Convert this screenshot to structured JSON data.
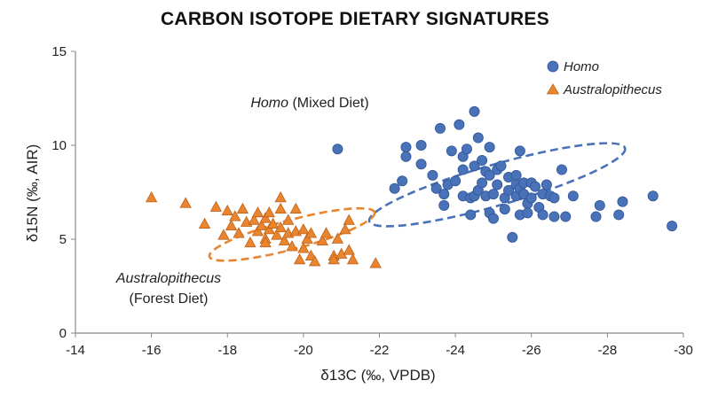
{
  "chart_data": {
    "type": "scatter",
    "title": "CARBON ISOTOPE DIETARY SIGNATURES",
    "xlabel": "δ13C (‰, VPDB)",
    "ylabel": "δ15N (‰, AIR)",
    "xlim": [
      -14,
      -30
    ],
    "ylim": [
      0,
      15
    ],
    "xticks": [
      -14,
      -16,
      -18,
      -20,
      -22,
      -24,
      -26,
      -28,
      -30
    ],
    "yticks": [
      0,
      5,
      10,
      15
    ],
    "grid": false,
    "legend": "top-right",
    "series": [
      {
        "name": "Homo",
        "marker": "circle",
        "color": "#4a72b8",
        "points": [
          [
            -20.9,
            9.8
          ],
          [
            -22.4,
            7.7
          ],
          [
            -22.6,
            8.1
          ],
          [
            -22.7,
            9.9
          ],
          [
            -22.7,
            9.4
          ],
          [
            -23.1,
            10.0
          ],
          [
            -23.1,
            9.0
          ],
          [
            -23.4,
            8.4
          ],
          [
            -23.5,
            7.7
          ],
          [
            -23.6,
            10.9
          ],
          [
            -23.7,
            7.4
          ],
          [
            -23.7,
            6.8
          ],
          [
            -23.8,
            7.9
          ],
          [
            -23.9,
            9.7
          ],
          [
            -24.0,
            8.1
          ],
          [
            -24.1,
            11.1
          ],
          [
            -24.2,
            8.7
          ],
          [
            -24.2,
            9.4
          ],
          [
            -24.2,
            7.3
          ],
          [
            -24.3,
            9.8
          ],
          [
            -24.4,
            7.2
          ],
          [
            -24.4,
            6.3
          ],
          [
            -24.5,
            11.8
          ],
          [
            -24.5,
            8.9
          ],
          [
            -24.5,
            7.3
          ],
          [
            -24.6,
            10.4
          ],
          [
            -24.6,
            7.6
          ],
          [
            -24.7,
            9.2
          ],
          [
            -24.7,
            8.0
          ],
          [
            -24.8,
            8.6
          ],
          [
            -24.8,
            7.3
          ],
          [
            -24.9,
            9.9
          ],
          [
            -24.9,
            8.4
          ],
          [
            -24.9,
            6.4
          ],
          [
            -25.0,
            7.4
          ],
          [
            -25.0,
            6.1
          ],
          [
            -25.1,
            8.7
          ],
          [
            -25.1,
            7.9
          ],
          [
            -25.2,
            8.9
          ],
          [
            -25.3,
            7.2
          ],
          [
            -25.3,
            6.6
          ],
          [
            -25.4,
            8.3
          ],
          [
            -25.4,
            7.6
          ],
          [
            -25.5,
            5.1
          ],
          [
            -25.6,
            8.4
          ],
          [
            -25.6,
            7.9
          ],
          [
            -25.6,
            7.3
          ],
          [
            -25.7,
            9.7
          ],
          [
            -25.7,
            7.7
          ],
          [
            -25.7,
            6.3
          ],
          [
            -25.8,
            8.0
          ],
          [
            -25.8,
            7.4
          ],
          [
            -25.9,
            6.9
          ],
          [
            -25.9,
            6.4
          ],
          [
            -26.0,
            8.0
          ],
          [
            -26.0,
            7.2
          ],
          [
            -26.1,
            7.8
          ],
          [
            -26.2,
            6.7
          ],
          [
            -26.3,
            7.4
          ],
          [
            -26.3,
            6.3
          ],
          [
            -26.4,
            7.9
          ],
          [
            -26.5,
            7.3
          ],
          [
            -26.6,
            7.2
          ],
          [
            -26.6,
            6.2
          ],
          [
            -26.8,
            8.7
          ],
          [
            -26.9,
            6.2
          ],
          [
            -27.1,
            7.3
          ],
          [
            -27.7,
            6.2
          ],
          [
            -27.8,
            6.8
          ],
          [
            -28.3,
            6.3
          ],
          [
            -28.4,
            7.0
          ],
          [
            -29.2,
            7.3
          ],
          [
            -29.7,
            5.7
          ]
        ]
      },
      {
        "name": "Australopithecus",
        "marker": "triangle",
        "color": "#e8852e",
        "points": [
          [
            -16.0,
            7.2
          ],
          [
            -16.9,
            6.9
          ],
          [
            -17.4,
            5.8
          ],
          [
            -17.7,
            6.7
          ],
          [
            -17.9,
            5.2
          ],
          [
            -18.0,
            6.5
          ],
          [
            -18.1,
            5.7
          ],
          [
            -18.2,
            6.2
          ],
          [
            -18.3,
            5.3
          ],
          [
            -18.4,
            6.6
          ],
          [
            -18.5,
            5.9
          ],
          [
            -18.6,
            4.8
          ],
          [
            -18.7,
            6.0
          ],
          [
            -18.8,
            6.4
          ],
          [
            -18.8,
            5.4
          ],
          [
            -18.9,
            5.7
          ],
          [
            -19.0,
            6.1
          ],
          [
            -19.0,
            5.0
          ],
          [
            -19.0,
            4.8
          ],
          [
            -19.1,
            6.4
          ],
          [
            -19.1,
            5.5
          ],
          [
            -19.2,
            5.8
          ],
          [
            -19.3,
            5.2
          ],
          [
            -19.4,
            7.2
          ],
          [
            -19.4,
            6.6
          ],
          [
            -19.4,
            5.6
          ],
          [
            -19.5,
            4.9
          ],
          [
            -19.6,
            6.0
          ],
          [
            -19.6,
            5.3
          ],
          [
            -19.7,
            4.6
          ],
          [
            -19.8,
            6.6
          ],
          [
            -19.8,
            5.4
          ],
          [
            -19.9,
            3.9
          ],
          [
            -20.0,
            5.5
          ],
          [
            -20.0,
            4.5
          ],
          [
            -20.1,
            5.0
          ],
          [
            -20.2,
            5.3
          ],
          [
            -20.2,
            4.1
          ],
          [
            -20.3,
            3.8
          ],
          [
            -20.5,
            4.9
          ],
          [
            -20.6,
            5.3
          ],
          [
            -20.8,
            4.1
          ],
          [
            -20.8,
            3.9
          ],
          [
            -20.9,
            5.0
          ],
          [
            -21.0,
            4.2
          ],
          [
            -21.1,
            5.5
          ],
          [
            -21.2,
            4.4
          ],
          [
            -21.2,
            6.0
          ],
          [
            -21.3,
            3.9
          ],
          [
            -21.9,
            3.7
          ]
        ]
      }
    ],
    "annotations": {
      "homo_genus": "Homo",
      "homo_diet": " (Mixed Diet)",
      "aus_genus": "Australopithecus",
      "aus_diet": "(Forest Diet)"
    },
    "ellipses": [
      {
        "series": "Homo",
        "center": [
          -25.1,
          7.9
        ],
        "semi_axes_data": [
          3.5,
          3.3
        ],
        "style": "dashed",
        "color": "#4a72b8"
      },
      {
        "series": "Australopithecus",
        "center": [
          -19.7,
          5.25
        ],
        "semi_axes_data": [
          2.25,
          2.35
        ],
        "style": "dashed",
        "color": "#e8852e"
      }
    ]
  }
}
